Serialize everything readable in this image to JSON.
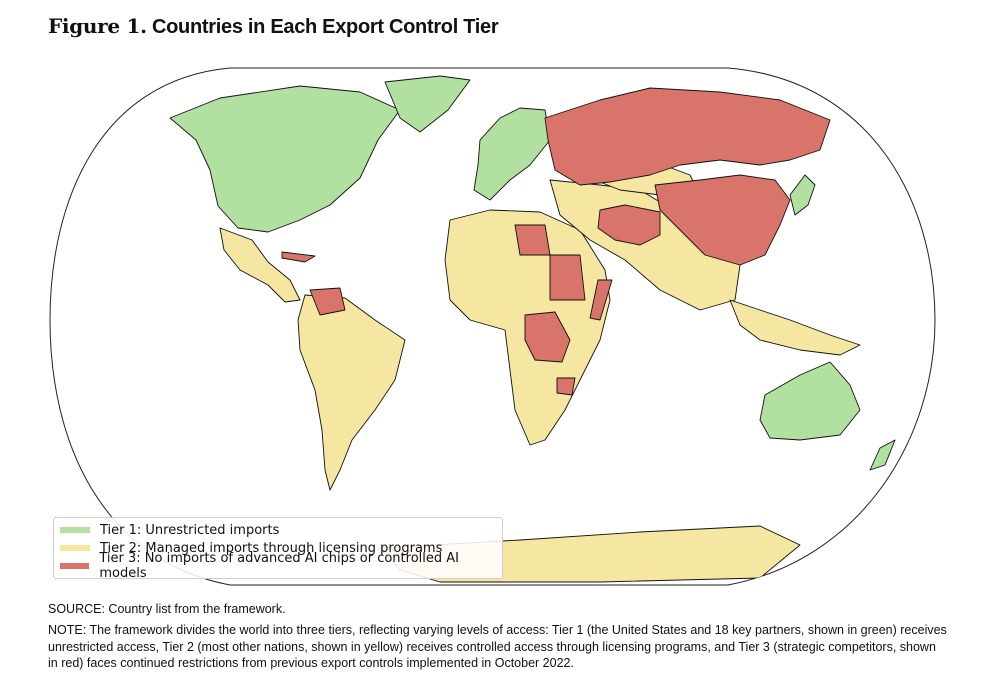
{
  "title": {
    "prefix": "Figure 1.",
    "text": "Countries in Each Export Control Tier"
  },
  "tier_colors": {
    "tier1": "#b2e0a0",
    "tier2": "#f5e6a1",
    "tier3": "#d9746a"
  },
  "legend": [
    {
      "label": "Tier 1: Unrestricted imports",
      "color": "#b2e0a0"
    },
    {
      "label": "Tier 2: Managed imports through licensing programs",
      "color": "#f5e6a1"
    },
    {
      "label": "Tier 3: No imports of advanced AI chips or controlled AI models",
      "color": "#d9746a"
    }
  ],
  "source": "SOURCE: Country list from the framework.",
  "note": "NOTE: The framework divides the world into three tiers, reflecting varying levels of access: Tier 1 (the United States and 18 key partners, shown in green) receives unrestricted access, Tier 2 (most other nations, shown in yellow) receives controlled access through licensing programs, and Tier 3 (strategic competitors, shown in red) faces continued restrictions from previous export controls implemented in October 2022."
}
